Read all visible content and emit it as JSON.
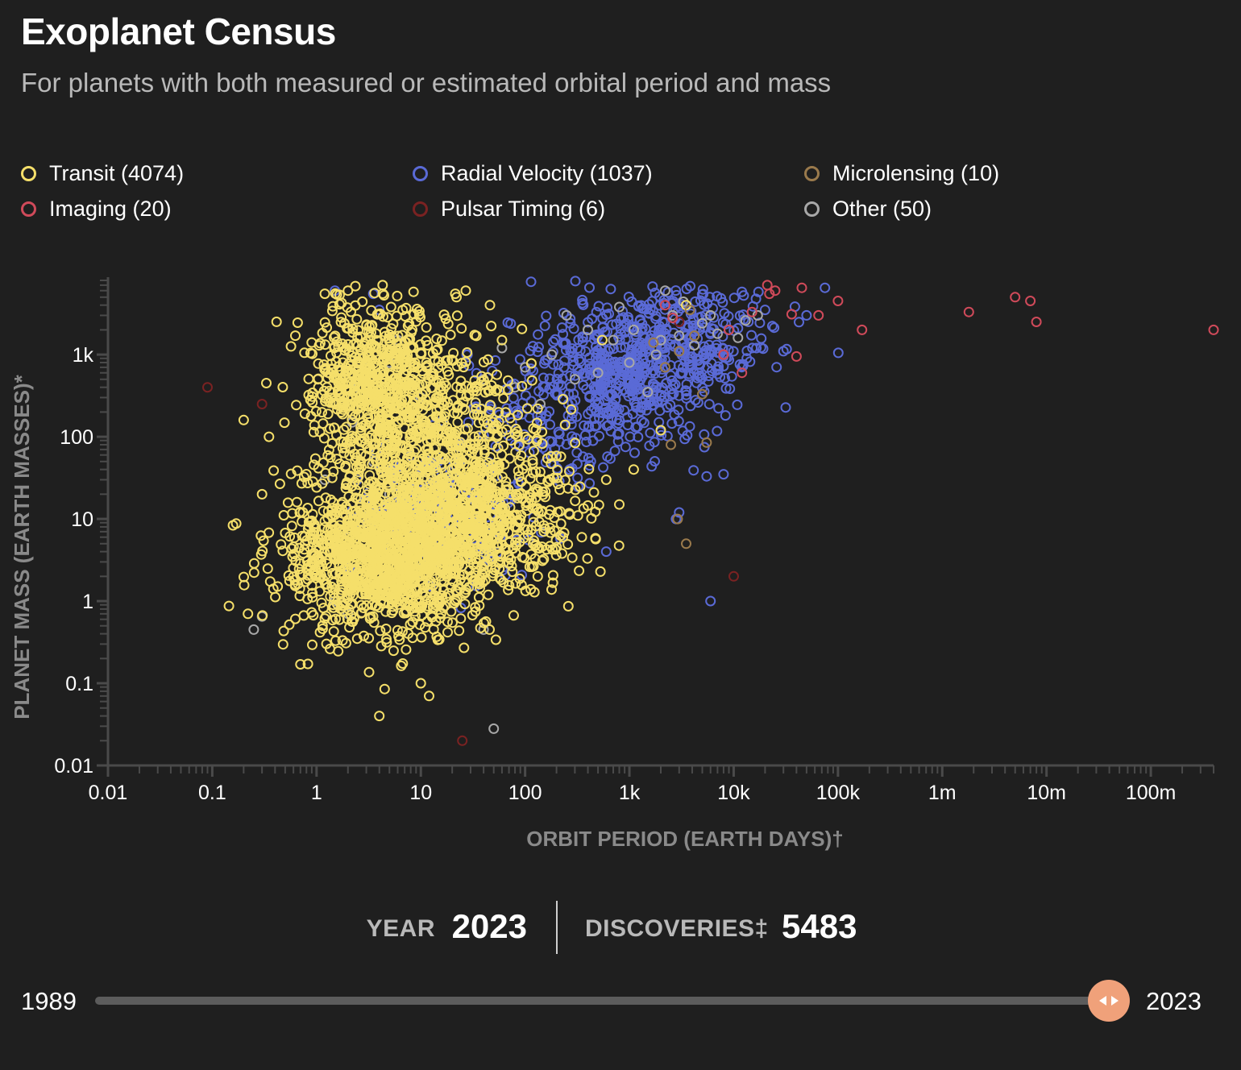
{
  "header": {
    "title": "Exoplanet Census",
    "subtitle": "For planets with both measured or estimated orbital period and mass"
  },
  "legend": [
    {
      "label": "Transit (4074)",
      "color": "#f5df6a"
    },
    {
      "label": "Radial Velocity (1037)",
      "color": "#5a6ad6"
    },
    {
      "label": "Microlensing (10)",
      "color": "#9a7a4c"
    },
    {
      "label": "Imaging (20)",
      "color": "#d04a5a"
    },
    {
      "label": "Pulsar Timing (6)",
      "color": "#7a2222"
    },
    {
      "label": "Other (50)",
      "color": "#a8a8a8"
    }
  ],
  "chart_data": {
    "type": "scatter",
    "xlabel": "ORBIT PERIOD (EARTH DAYS)†",
    "ylabel": "PLANET MASS (EARTH MASSES)*",
    "xscale": "log",
    "yscale": "log",
    "xlim": [
      0.01,
      400000000
    ],
    "ylim": [
      0.01,
      8000
    ],
    "x_ticks": [
      {
        "value": 0.01,
        "label": "0.01"
      },
      {
        "value": 0.1,
        "label": "0.1"
      },
      {
        "value": 1,
        "label": "1"
      },
      {
        "value": 10,
        "label": "10"
      },
      {
        "value": 100,
        "label": "100"
      },
      {
        "value": 1000,
        "label": "1k"
      },
      {
        "value": 10000,
        "label": "10k"
      },
      {
        "value": 100000,
        "label": "100k"
      },
      {
        "value": 1000000,
        "label": "1m"
      },
      {
        "value": 10000000,
        "label": "10m"
      },
      {
        "value": 100000000,
        "label": "100m"
      }
    ],
    "y_ticks": [
      {
        "value": 0.01,
        "label": "0.01"
      },
      {
        "value": 0.1,
        "label": "0.1"
      },
      {
        "value": 1,
        "label": "1"
      },
      {
        "value": 10,
        "label": "10"
      },
      {
        "value": 100,
        "label": "100"
      },
      {
        "value": 1000,
        "label": "1k"
      }
    ],
    "series": [
      {
        "name": "Transit",
        "count": 4074,
        "color": "#f5df6a",
        "clusters": [
          {
            "cx": 4.0,
            "cy": 500,
            "sx": 0.35,
            "sy": 0.45,
            "n": 650
          },
          {
            "cx": 3.5,
            "cy": 3.0,
            "sx": 0.45,
            "sy": 0.45,
            "n": 900
          },
          {
            "cx": 12,
            "cy": 8,
            "sx": 0.45,
            "sy": 0.55,
            "n": 650
          },
          {
            "cx": 50,
            "cy": 12,
            "sx": 0.4,
            "sy": 0.45,
            "n": 420
          },
          {
            "cx": 8,
            "cy": 30,
            "sx": 0.45,
            "sy": 0.5,
            "n": 320
          },
          {
            "cx": 30,
            "cy": 200,
            "sx": 0.5,
            "sy": 0.45,
            "n": 140
          }
        ],
        "points": [
          [
            0.2,
            160
          ],
          [
            0.35,
            100
          ],
          [
            0.33,
            450
          ],
          [
            0.3,
            20
          ],
          [
            0.7,
            0.17
          ],
          [
            4,
            0.04
          ],
          [
            4.5,
            0.085
          ],
          [
            12,
            0.07
          ],
          [
            10,
            0.1
          ],
          [
            0.22,
            0.7
          ],
          [
            22,
            5000
          ],
          [
            27,
            6000
          ],
          [
            46,
            4000
          ],
          [
            60,
            1500
          ],
          [
            4.3,
            7000
          ],
          [
            1.2,
            5500
          ],
          [
            2,
            6000
          ],
          [
            4,
            1200
          ],
          [
            350,
            6
          ],
          [
            600,
            30
          ],
          [
            800,
            15
          ],
          [
            1100,
            40
          ],
          [
            2000,
            120
          ],
          [
            550,
            1500
          ],
          [
            3500,
            4000
          ]
        ]
      },
      {
        "name": "Radial Velocity",
        "count": 1037,
        "color": "#5a6ad6",
        "clusters": [
          {
            "cx": 1000,
            "cy": 700,
            "sx": 0.45,
            "sy": 0.45,
            "n": 520
          },
          {
            "cx": 5000,
            "cy": 1800,
            "sx": 0.45,
            "sy": 0.35,
            "n": 160
          },
          {
            "cx": 15,
            "cy": 12,
            "sx": 0.45,
            "sy": 0.45,
            "n": 170
          },
          {
            "cx": 150,
            "cy": 150,
            "sx": 0.4,
            "sy": 0.45,
            "n": 110
          }
        ],
        "points": [
          [
            6000,
            1
          ],
          [
            75000,
            6500
          ],
          [
            30000,
            1100
          ],
          [
            3000,
            12
          ],
          [
            2800,
            10
          ],
          [
            8000,
            35
          ],
          [
            5500,
            33
          ],
          [
            600,
            4
          ],
          [
            1.5,
            6000
          ],
          [
            3.5,
            5500
          ],
          [
            4,
            3500
          ],
          [
            50000,
            3000
          ],
          [
            12000,
            5800
          ],
          [
            20000,
            3500
          ],
          [
            7000,
            650
          ]
        ]
      },
      {
        "name": "Microlensing",
        "count": 10,
        "color": "#9a7a4c",
        "points": [
          [
            3500,
            5
          ],
          [
            2900,
            10
          ],
          [
            2500,
            80
          ],
          [
            5500,
            85
          ],
          [
            5000,
            330
          ],
          [
            2200,
            700
          ],
          [
            3000,
            1100
          ],
          [
            4200,
            1700
          ],
          [
            3800,
            3500
          ],
          [
            1700,
            1400
          ]
        ]
      },
      {
        "name": "Imaging",
        "count": 20,
        "color": "#d04a5a",
        "points": [
          [
            400000000,
            2000
          ],
          [
            8000000,
            2500
          ],
          [
            7000000,
            4500
          ],
          [
            5000000,
            5000
          ],
          [
            1800000,
            3300
          ],
          [
            170000,
            2000
          ],
          [
            100000,
            4500
          ],
          [
            65000,
            3000
          ],
          [
            45000,
            6500
          ],
          [
            40000,
            950
          ],
          [
            25000,
            6000
          ],
          [
            22000,
            5500
          ],
          [
            12000,
            600
          ],
          [
            9000,
            2000
          ],
          [
            8000,
            1000
          ],
          [
            2600,
            2800
          ],
          [
            2200,
            4000
          ],
          [
            21000,
            7000
          ],
          [
            15000,
            3300
          ],
          [
            36000,
            3100
          ]
        ]
      },
      {
        "name": "Pulsar Timing",
        "count": 6,
        "color": "#7a2222",
        "points": [
          [
            0.09,
            400
          ],
          [
            0.3,
            250
          ],
          [
            25,
            0.02
          ],
          [
            10000,
            2
          ],
          [
            8000,
            1000
          ],
          [
            3000,
            2500
          ]
        ]
      },
      {
        "name": "Other",
        "count": 50,
        "color": "#a8a8a8",
        "points": [
          [
            0.25,
            0.45
          ],
          [
            0.3,
            0.65
          ],
          [
            50,
            0.028
          ],
          [
            40,
            0.45
          ],
          [
            2,
            0.7
          ],
          [
            1.5,
            1.0
          ],
          [
            3,
            700
          ],
          [
            2.2,
            150
          ],
          [
            2.5,
            400
          ],
          [
            3.5,
            50
          ],
          [
            5,
            20
          ],
          [
            9,
            11
          ],
          [
            14,
            8
          ],
          [
            30,
            6
          ],
          [
            20,
            3
          ],
          [
            40,
            500
          ],
          [
            60,
            1200
          ],
          [
            80,
            400
          ],
          [
            100,
            700
          ],
          [
            140,
            250
          ],
          [
            180,
            1000
          ],
          [
            250,
            3000
          ],
          [
            300,
            500
          ],
          [
            400,
            2000
          ],
          [
            500,
            600
          ],
          [
            700,
            1500
          ],
          [
            800,
            3800
          ],
          [
            1000,
            800
          ],
          [
            1100,
            2000
          ],
          [
            1500,
            350
          ],
          [
            1800,
            1000
          ],
          [
            2000,
            1500
          ],
          [
            2200,
            6000
          ],
          [
            2600,
            3000
          ],
          [
            3000,
            1700
          ],
          [
            3300,
            4400
          ],
          [
            4200,
            1300
          ],
          [
            5000,
            2400
          ],
          [
            6000,
            3000
          ],
          [
            7000,
            1800
          ],
          [
            9000,
            2000
          ],
          [
            11000,
            1600
          ],
          [
            13000,
            2600
          ],
          [
            17000,
            3000
          ],
          [
            5,
            800
          ],
          [
            6,
            1500
          ],
          [
            10,
            300
          ],
          [
            1.2,
            30
          ],
          [
            3,
            2
          ],
          [
            8,
            5
          ]
        ]
      }
    ]
  },
  "stats": {
    "year_label": "YEAR",
    "year_value": "2023",
    "discoveries_label": "DISCOVERIES‡",
    "discoveries_value": "5483"
  },
  "slider": {
    "min_label": "1989",
    "max_label": "2023",
    "value": 2023,
    "min": 1989,
    "max": 2023
  }
}
